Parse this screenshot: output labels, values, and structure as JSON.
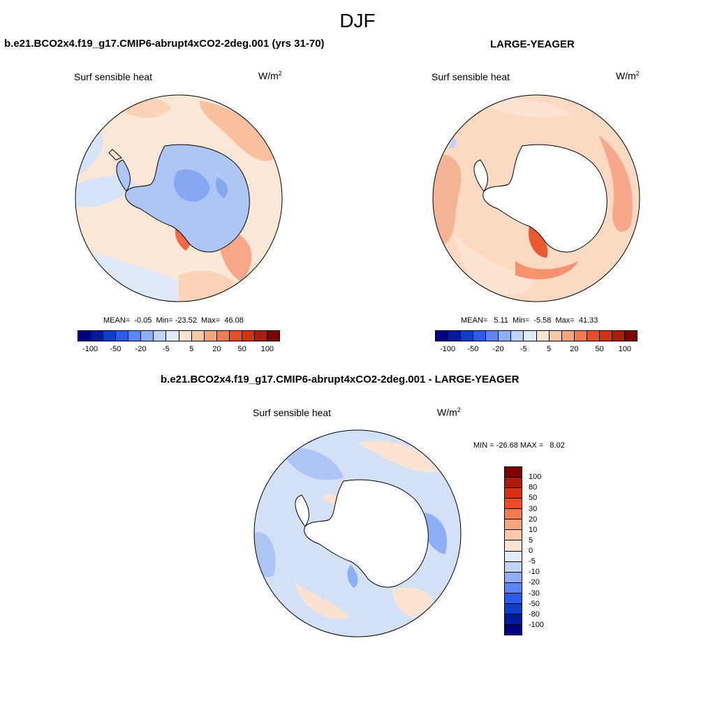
{
  "figure": {
    "title": "DJF",
    "variable": "Surf sensible heat",
    "units_base": "W/m",
    "units_exp": "2"
  },
  "panels": {
    "top_left": {
      "title": "b.e21.BCO2x4.f19_g17.CMIP6-abrupt4xCO2-2deg.001 (yrs 31-70)",
      "stats": "MEAN=  -0.05  Min= -23.52  Max=  46.08",
      "mean": -0.05,
      "min": -23.52,
      "max": 46.08
    },
    "top_right": {
      "title": "LARGE-YEAGER",
      "stats": "MEAN=   5.11  Min=  -5.58  Max=  41.33",
      "mean": 5.11,
      "min": -5.58,
      "max": 41.33
    },
    "bottom": {
      "title": "b.e21.BCO2x4.f19_g17.CMIP6-abrupt4xCO2-2deg.001 - LARGE-YEAGER",
      "stats": "MIN = -26.68 MAX =   8.02",
      "min": -26.68,
      "max": 8.02
    }
  },
  "colorbars": {
    "abs": {
      "colors": [
        "#00007f",
        "#001a9e",
        "#0d3fcc",
        "#2b5bf0",
        "#5b86f3",
        "#8eaef5",
        "#c0d4f7",
        "#e0ebfb",
        "#fde4d2",
        "#fbc9a8",
        "#f8a47c",
        "#f47a50",
        "#ef4b26",
        "#d9300e",
        "#b01b08",
        "#7f0000"
      ],
      "tick_labels": [
        "-100",
        "-50",
        "-20",
        "-5",
        "5",
        "20",
        "50",
        "100"
      ]
    },
    "diff": {
      "colors": [
        "#7f0000",
        "#b01b08",
        "#d9300e",
        "#ef4b26",
        "#f47a50",
        "#f8a47c",
        "#fbc9a8",
        "#fde4d2",
        "#e0ebfb",
        "#c0d4f7",
        "#8eaef5",
        "#5b86f3",
        "#2b5bf0",
        "#0d3fcc",
        "#001a9e",
        "#00007f"
      ],
      "tick_labels": [
        "100",
        "80",
        "50",
        "30",
        "20",
        "10",
        "5",
        "0",
        "-5",
        "-10",
        "-20",
        "-30",
        "-50",
        "-80",
        "-100"
      ]
    }
  },
  "maps": {
    "ocean_colors": {
      "top_left": "#fde7d6",
      "top_right": "#fbd9c2",
      "bottom": "#d3e1f7"
    }
  }
}
